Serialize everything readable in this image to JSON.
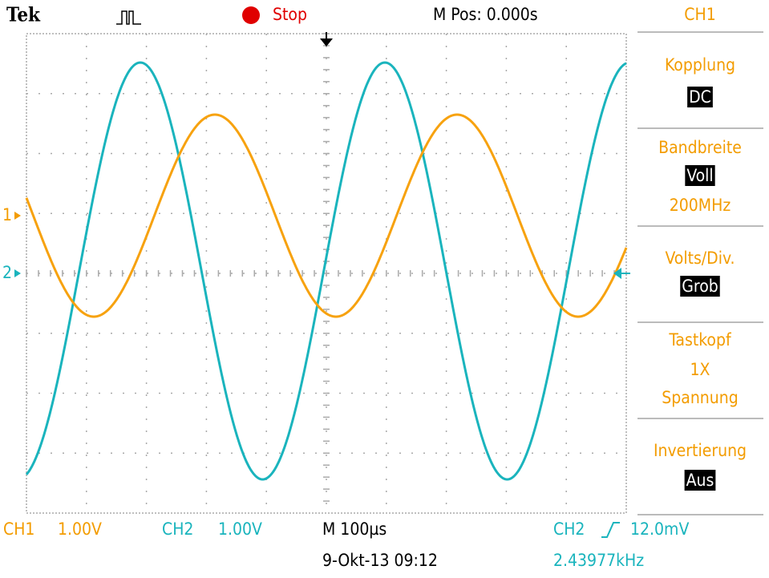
{
  "header": {
    "brand": "Tek",
    "status": "Stop",
    "position": "M Pos: 0.000s",
    "menu_channel": "CH1"
  },
  "menu": [
    {
      "label": "Kopplung",
      "value": "DC"
    },
    {
      "label": "Bandbreite",
      "value": "Voll",
      "extra": "200MHz"
    },
    {
      "label": "Volts/Div.",
      "value": "Grob"
    },
    {
      "label": "Tastkopf",
      "lines": [
        "1X",
        "Spannung"
      ]
    },
    {
      "label": "Invertierung",
      "value": "Aus"
    }
  ],
  "markers": {
    "ch1": "1",
    "ch2": "2"
  },
  "footer": {
    "ch1_label": "CH1",
    "ch1_scale": "1.00V",
    "ch2_label": "CH2",
    "ch2_scale": "1.00V",
    "timebase": "M 100µs",
    "trigger_source": "CH2",
    "trigger_level": "12.0mV",
    "date": "9-Okt-13 09:12",
    "frequency": "2.43977kHz"
  }
}
